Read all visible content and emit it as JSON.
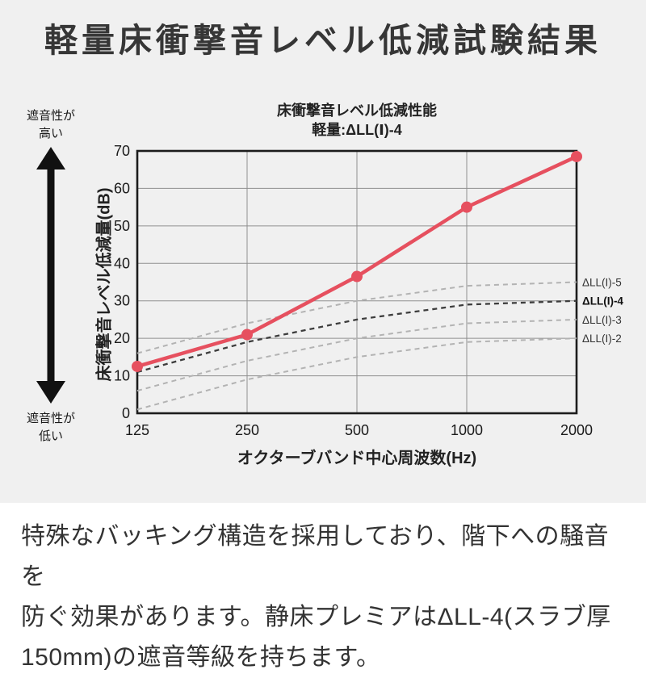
{
  "header": {
    "title": "軽量床衝撃音レベル低減試験結果"
  },
  "left_annotation": {
    "top": "遮音性が\n高い",
    "bottom": "遮音性が\n低い"
  },
  "chart_data": {
    "type": "line",
    "title": "床衝撃音レベル低減性能",
    "subtitle": "軽量:ΔLL(Ⅰ)-4",
    "xlabel": "オクターブバンド中心周波数(Hz)",
    "ylabel": "床衝撃音レベル低減量(dB)",
    "x_tick_labels": [
      "125",
      "250",
      "500",
      "1000",
      "2000"
    ],
    "y_ticks": [
      0,
      10,
      20,
      30,
      40,
      50,
      60,
      70
    ],
    "ylim": [
      0,
      70
    ],
    "grid": true,
    "product_series": {
      "color": "#e6505f",
      "values": [
        12.5,
        21,
        36.5,
        55,
        68.5
      ]
    },
    "reference_series": [
      {
        "label": "ΔLL(I)-5",
        "values": [
          16,
          24,
          30,
          34,
          35
        ],
        "style": "light-dashed",
        "color": "#b3b3b3"
      },
      {
        "label": "ΔLL(I)-4",
        "values": [
          11,
          19,
          25,
          29,
          30
        ],
        "style": "dark-dashed",
        "color": "#3d3d3d"
      },
      {
        "label": "ΔLL(I)-3",
        "values": [
          6,
          14,
          20,
          24,
          25
        ],
        "style": "light-dashed",
        "color": "#b3b3b3"
      },
      {
        "label": "ΔLL(I)-2",
        "values": [
          1,
          9,
          15,
          19,
          20
        ],
        "style": "light-dashed",
        "color": "#b3b3b3"
      }
    ],
    "legend_position": "right-edge"
  },
  "theme": {
    "panel_bg": "#f0f0f0",
    "frame_color": "#1c1c1c",
    "grid_color": "#8f8f8f",
    "text_color": "#333333"
  },
  "footer": {
    "text": "特殊なバッキング構造を採用しており、階下への騒音を\n防ぐ効果があります。静床プレミアはΔLL-4(スラブ厚\n150mm)の遮音等級を持ちます。"
  }
}
